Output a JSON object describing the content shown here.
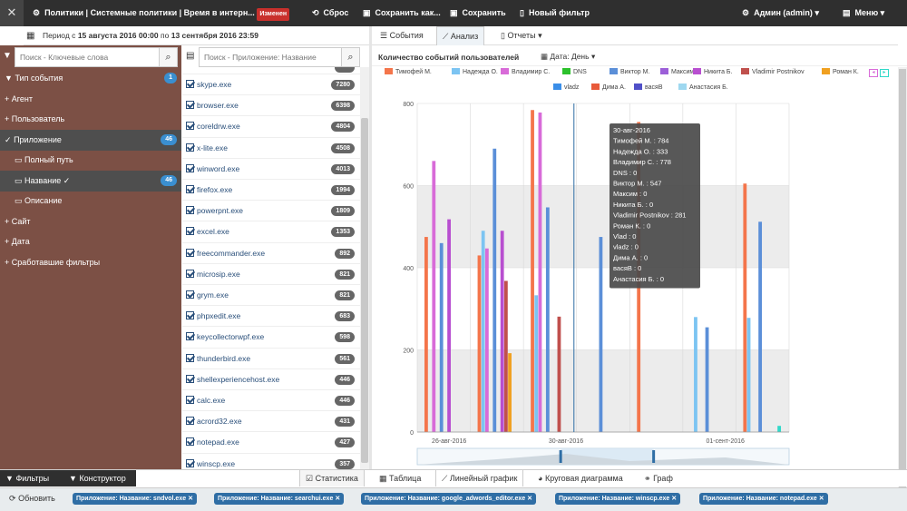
{
  "topbar": {
    "title": "Политики | Системные политики | Время в интерн...",
    "badge": "Изменен",
    "reset": "Сброс",
    "save_as": "Сохранить как...",
    "save": "Сохранить",
    "new_filter": "Новый фильтр",
    "admin": "Админ (admin)",
    "menu": "Меню"
  },
  "period": {
    "prefix": "Период с",
    "from": "15 августа 2016 00:00",
    "mid": "по",
    "to": "13 сентября 2016 23:59"
  },
  "search": {
    "keywords_placeholder": "Поиск - Ключевые слова",
    "app_placeholder": "Поиск - Приложение: Название"
  },
  "filters": [
    {
      "label": "Тип события",
      "count": "1"
    },
    {
      "label": "Агент"
    },
    {
      "label": "Пользователь"
    },
    {
      "label": "Приложение",
      "count": "46"
    },
    {
      "label": "Полный путь"
    },
    {
      "label": "Название",
      "count": "46"
    },
    {
      "label": "Описание"
    },
    {
      "label": "Сайт"
    },
    {
      "label": "Дата"
    },
    {
      "label": "Сработавшие фильтры"
    }
  ],
  "apps": [
    {
      "name": "skype.exe",
      "count": "7280"
    },
    {
      "name": "browser.exe",
      "count": "6398"
    },
    {
      "name": "coreldrw.exe",
      "count": "4804"
    },
    {
      "name": "x-lite.exe",
      "count": "4508"
    },
    {
      "name": "winword.exe",
      "count": "4013"
    },
    {
      "name": "firefox.exe",
      "count": "1994"
    },
    {
      "name": "powerpnt.exe",
      "count": "1809"
    },
    {
      "name": "excel.exe",
      "count": "1353"
    },
    {
      "name": "freecommander.exe",
      "count": "892"
    },
    {
      "name": "microsip.exe",
      "count": "821"
    },
    {
      "name": "grym.exe",
      "count": "821"
    },
    {
      "name": "phpxedit.exe",
      "count": "683"
    },
    {
      "name": "keycollectorwpf.exe",
      "count": "598"
    },
    {
      "name": "thunderbird.exe",
      "count": "561"
    },
    {
      "name": "shellexperiencehost.exe",
      "count": "446"
    },
    {
      "name": "calc.exe",
      "count": "446"
    },
    {
      "name": "acrord32.exe",
      "count": "431"
    },
    {
      "name": "notepad.exe",
      "count": "427"
    },
    {
      "name": "winscp.exe",
      "count": "357"
    }
  ],
  "tabs": {
    "events": "События",
    "analysis": "Анализ",
    "reports": "Отчеты"
  },
  "chart_header": {
    "title": "Количество событий пользователей",
    "date_mode": "Дата: День"
  },
  "chart_data": {
    "type": "bar",
    "x_ticks": [
      "26-авг-2016",
      "30-авг-2016",
      "01-сент-2016"
    ],
    "y_ticks": [
      "0",
      "200",
      "400",
      "600",
      "800"
    ],
    "ylim": [
      0,
      800
    ],
    "series": [
      {
        "name": "Тимофей М.",
        "color": "#f4754b",
        "values": [
          475,
          430,
          784,
          0,
          755,
          0,
          605
        ]
      },
      {
        "name": "Надежда О.",
        "color": "#7cc4f2",
        "values": [
          0,
          490,
          333,
          0,
          0,
          280,
          278
        ]
      },
      {
        "name": "Владимир С.",
        "color": "#d86bd8",
        "values": [
          660,
          447,
          778,
          0,
          0,
          0,
          0
        ]
      },
      {
        "name": "DNS",
        "color": "#2cc12c",
        "values": [
          0,
          0,
          0,
          0,
          0,
          0,
          0
        ]
      },
      {
        "name": "Виктор М.",
        "color": "#5b8fd8",
        "values": [
          460,
          690,
          547,
          475,
          0,
          255,
          512
        ]
      },
      {
        "name": "Максим",
        "color": "#9c5fd8",
        "values": [
          0,
          0,
          0,
          0,
          0,
          0,
          0
        ]
      },
      {
        "name": "Никита Б.",
        "color": "#b84fd0",
        "values": [
          518,
          490,
          0,
          0,
          0,
          0,
          0
        ]
      },
      {
        "name": "Vladimir Postnikov",
        "color": "#c0504d",
        "values": [
          0,
          368,
          281,
          0,
          0,
          0,
          0
        ]
      },
      {
        "name": "Роман К.",
        "color": "#f0a020",
        "values": [
          0,
          192,
          0,
          0,
          0,
          0,
          0
        ]
      },
      {
        "name": "Vlad",
        "color": "#2fd8c8",
        "values": [
          0,
          0,
          0,
          0,
          0,
          0,
          15
        ]
      },
      {
        "name": "vladz",
        "color": "#3a8ee8",
        "values": [
          0,
          0,
          0,
          0,
          0,
          0,
          0
        ]
      },
      {
        "name": "Дима А.",
        "color": "#e85a3a",
        "values": [
          0,
          0,
          0,
          0,
          0,
          0,
          0
        ]
      },
      {
        "name": "васяВ",
        "color": "#5050c8",
        "values": [
          0,
          0,
          0,
          0,
          0,
          0,
          0
        ]
      },
      {
        "name": "Анастасия Б.",
        "color": "#9ed8f0",
        "values": [
          0,
          0,
          0,
          0,
          0,
          0,
          0
        ]
      }
    ],
    "tooltip": {
      "date": "30-авг-2016",
      "lines": [
        "Тимофей М. : 784",
        "Надежда О. : 333",
        "Владимир С. : 778",
        "DNS : 0",
        "Виктор М. : 547",
        "Максим : 0",
        "Никита Б. : 0",
        "Vladimir Postnikov : 281",
        "Роман К. : 0",
        "Vlad : 0",
        "vladz : 0",
        "Дима А. : 0",
        "васяВ : 0",
        "Анастасия Б. : 0"
      ]
    },
    "grid": true,
    "legend_position": "top"
  },
  "bottom_tabs": {
    "filters": "Фильтры",
    "constructor": "Конструктор",
    "stats": "Статистика",
    "table": "Таблица",
    "line": "Линейный график",
    "pie": "Круговая диаграмма",
    "graph": "Граф"
  },
  "status": {
    "refresh": "Обновить",
    "chips": [
      "Приложение: Название: sndvol.exe",
      "Приложение: Название: searchui.exe",
      "Приложение: Название: google_adwords_editor.exe",
      "Приложение: Название: winscp.exe",
      "Приложение: Название: notepad.exe"
    ]
  }
}
